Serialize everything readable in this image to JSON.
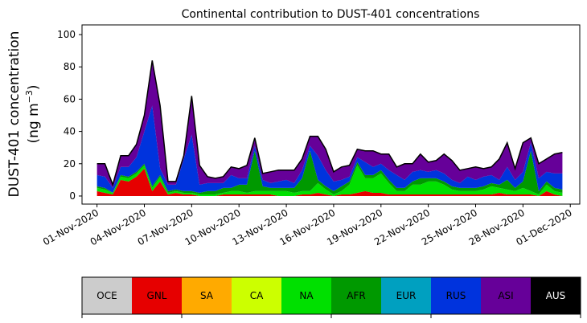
{
  "chart_data": {
    "type": "area",
    "title": "Continental contribution to DUST-401 concentrations",
    "ylabel_line1": "DUST-401 concentration",
    "ylabel_line2_prefix": "(ng m",
    "ylabel_line2_sup": "−3",
    "ylabel_line2_suffix": ")",
    "ylim": [
      -5,
      106
    ],
    "yticks": [
      0,
      20,
      40,
      60,
      80,
      100
    ],
    "xticks": [
      "01-Nov-2020",
      "04-Nov-2020",
      "07-Nov-2020",
      "10-Nov-2020",
      "13-Nov-2020",
      "16-Nov-2020",
      "19-Nov-2020",
      "22-Nov-2020",
      "25-Nov-2020",
      "28-Nov-2020",
      "01-Dec-2020"
    ],
    "x": [
      "2020-11-01",
      "2020-11-01T12",
      "2020-11-02",
      "2020-11-02T12",
      "2020-11-03",
      "2020-11-03T12",
      "2020-11-04",
      "2020-11-04T12",
      "2020-11-05",
      "2020-11-05T12",
      "2020-11-06",
      "2020-11-06T12",
      "2020-11-07",
      "2020-11-07T12",
      "2020-11-08",
      "2020-11-08T12",
      "2020-11-09",
      "2020-11-09T12",
      "2020-11-10",
      "2020-11-10T12",
      "2020-11-11",
      "2020-11-11T12",
      "2020-11-12",
      "2020-11-12T12",
      "2020-11-13",
      "2020-11-13T12",
      "2020-11-14",
      "2020-11-14T12",
      "2020-11-15",
      "2020-11-15T12",
      "2020-11-16",
      "2020-11-16T12",
      "2020-11-17",
      "2020-11-17T12",
      "2020-11-18",
      "2020-11-18T12",
      "2020-11-19",
      "2020-11-19T12",
      "2020-11-20",
      "2020-11-20T12",
      "2020-11-21",
      "2020-11-21T12",
      "2020-11-22",
      "2020-11-22T12",
      "2020-11-23",
      "2020-11-23T12",
      "2020-11-24",
      "2020-11-24T12",
      "2020-11-25",
      "2020-11-25T12",
      "2020-11-26",
      "2020-11-26T12",
      "2020-11-27",
      "2020-11-27T12",
      "2020-11-28",
      "2020-11-28T12",
      "2020-11-29",
      "2020-11-29T12",
      "2020-11-30",
      "2020-11-30T12"
    ],
    "series": [
      {
        "name": "OCE",
        "color": "#cccccc",
        "values": [
          0,
          0,
          0,
          0,
          0,
          0,
          0,
          0,
          0,
          0,
          0,
          0,
          0,
          0,
          0,
          0,
          0,
          0,
          0,
          0,
          0,
          0,
          0,
          0,
          0,
          0,
          0,
          0,
          0,
          0,
          0,
          0,
          0,
          0,
          0,
          0,
          0,
          0,
          0,
          0,
          0,
          0,
          0,
          0,
          0,
          0,
          0,
          0,
          0,
          0,
          0,
          0,
          0,
          0,
          0,
          0,
          0,
          0,
          0,
          0
        ]
      },
      {
        "name": "GNL",
        "color": "#e60000",
        "values": [
          3,
          2,
          1,
          10,
          9,
          12,
          17,
          3,
          9,
          1,
          2,
          1,
          1,
          0,
          0,
          0,
          1,
          1,
          1,
          1,
          1,
          1,
          1,
          0,
          0,
          0,
          1,
          1,
          2,
          1,
          0,
          1,
          1,
          2,
          3,
          2,
          2,
          1,
          1,
          1,
          1,
          1,
          1,
          1,
          1,
          1,
          1,
          1,
          1,
          1,
          1,
          2,
          1,
          1,
          1,
          1,
          0,
          3,
          1,
          0
        ]
      },
      {
        "name": "SA",
        "color": "#ffaa00",
        "values": [
          0,
          0,
          0,
          0,
          0,
          0,
          0,
          0,
          0,
          0,
          0,
          0,
          0,
          0,
          0,
          0,
          0,
          0,
          0,
          0,
          0,
          0,
          0,
          0,
          0,
          0,
          0,
          0,
          0,
          0,
          0,
          0,
          0,
          0,
          0,
          0,
          0,
          0,
          0,
          0,
          0,
          0,
          0,
          0,
          0,
          0,
          0,
          0,
          0,
          0,
          0,
          0,
          0,
          0,
          0,
          0,
          0,
          0,
          0,
          0
        ]
      },
      {
        "name": "CA",
        "color": "#ccff00",
        "values": [
          0,
          0,
          0,
          0,
          0,
          0,
          0,
          0,
          0,
          0,
          0,
          0,
          0,
          0,
          0,
          0,
          0,
          0,
          0,
          0,
          0,
          0,
          0,
          0,
          0,
          0,
          0,
          0,
          0,
          0,
          0,
          0,
          0,
          0,
          0,
          0,
          0,
          0,
          0,
          0,
          0,
          0,
          0,
          0,
          0,
          0,
          0,
          0,
          0,
          0,
          0,
          0,
          0,
          0,
          0,
          0,
          0,
          0,
          0,
          0
        ]
      },
      {
        "name": "NA",
        "color": "#00e000",
        "values": [
          2,
          2,
          1,
          2,
          2,
          2,
          2,
          2,
          3,
          1,
          1,
          1,
          1,
          1,
          1,
          1,
          1,
          2,
          2,
          1,
          2,
          2,
          2,
          3,
          3,
          2,
          2,
          2,
          6,
          3,
          1,
          2,
          6,
          17,
          8,
          9,
          12,
          7,
          2,
          2,
          6,
          6,
          8,
          8,
          6,
          3,
          2,
          2,
          2,
          3,
          5,
          3,
          3,
          2,
          4,
          2,
          1,
          4,
          2,
          2
        ]
      },
      {
        "name": "AFR",
        "color": "#009900",
        "values": [
          1,
          1,
          0,
          1,
          1,
          1,
          1,
          1,
          1,
          1,
          1,
          1,
          1,
          1,
          2,
          2,
          3,
          2,
          4,
          5,
          25,
          3,
          2,
          2,
          2,
          3,
          8,
          25,
          2,
          2,
          2,
          3,
          2,
          2,
          2,
          2,
          2,
          2,
          2,
          2,
          2,
          4,
          2,
          2,
          2,
          2,
          2,
          2,
          2,
          2,
          2,
          2,
          6,
          2,
          4,
          25,
          2,
          2,
          2,
          2
        ]
      },
      {
        "name": "EUR",
        "color": "#00a0c0",
        "values": [
          0,
          0,
          0,
          0,
          0,
          0,
          0,
          0,
          0,
          0,
          0,
          0,
          0,
          0,
          0,
          0,
          0,
          0,
          0,
          0,
          0,
          0,
          0,
          0,
          0,
          0,
          0,
          0,
          0,
          0,
          0,
          0,
          0,
          0,
          0,
          0,
          0,
          0,
          0,
          0,
          0,
          0,
          0,
          0,
          0,
          0,
          0,
          0,
          0,
          0,
          0,
          0,
          0,
          0,
          0,
          0,
          0,
          0,
          0,
          0
        ]
      },
      {
        "name": "RUS",
        "color": "#0033dd",
        "values": [
          7,
          7,
          3,
          5,
          6,
          9,
          20,
          50,
          4,
          4,
          3,
          20,
          35,
          5,
          5,
          5,
          3,
          8,
          4,
          4,
          3,
          4,
          3,
          4,
          5,
          3,
          5,
          3,
          15,
          10,
          6,
          4,
          3,
          3,
          8,
          5,
          4,
          6,
          8,
          5,
          6,
          5,
          4,
          5,
          5,
          4,
          3,
          7,
          5,
          6,
          5,
          3,
          8,
          5,
          6,
          5,
          8,
          6,
          9,
          10
        ]
      },
      {
        "name": "ASI",
        "color": "#660099",
        "values": [
          7,
          8,
          2,
          7,
          7,
          8,
          10,
          28,
          39,
          2,
          2,
          2,
          24,
          12,
          4,
          3,
          4,
          5,
          6,
          8,
          5,
          4,
          7,
          7,
          6,
          8,
          7,
          6,
          12,
          13,
          6,
          8,
          7,
          5,
          7,
          10,
          6,
          10,
          5,
          10,
          5,
          10,
          6,
          6,
          12,
          12,
          8,
          5,
          8,
          5,
          5,
          13,
          15,
          7,
          18,
          3,
          9,
          8,
          12,
          13
        ]
      },
      {
        "name": "AUS",
        "color": "#000000",
        "values": [
          0,
          0,
          0,
          0,
          0,
          0,
          0,
          0,
          0,
          0,
          0,
          0,
          0,
          0,
          0,
          0,
          0,
          0,
          0,
          0,
          0,
          0,
          0,
          0,
          0,
          0,
          0,
          0,
          0,
          0,
          0,
          0,
          0,
          0,
          0,
          0,
          0,
          0,
          0,
          0,
          0,
          0,
          0,
          0,
          0,
          0,
          0,
          0,
          0,
          0,
          0,
          0,
          0,
          0,
          0,
          0,
          0,
          0,
          0,
          0
        ]
      }
    ]
  },
  "legend": [
    {
      "name": "OCE",
      "color": "#cccccc",
      "text_color": "#000000"
    },
    {
      "name": "GNL",
      "color": "#e60000",
      "text_color": "#000000"
    },
    {
      "name": "SA",
      "color": "#ffaa00",
      "text_color": "#000000"
    },
    {
      "name": "CA",
      "color": "#ccff00",
      "text_color": "#000000"
    },
    {
      "name": "NA",
      "color": "#00e000",
      "text_color": "#000000"
    },
    {
      "name": "AFR",
      "color": "#009900",
      "text_color": "#000000"
    },
    {
      "name": "EUR",
      "color": "#00a0c0",
      "text_color": "#000000"
    },
    {
      "name": "RUS",
      "color": "#0033dd",
      "text_color": "#000000"
    },
    {
      "name": "ASI",
      "color": "#660099",
      "text_color": "#000000"
    },
    {
      "name": "AUS",
      "color": "#000000",
      "text_color": "#ffffff"
    }
  ]
}
